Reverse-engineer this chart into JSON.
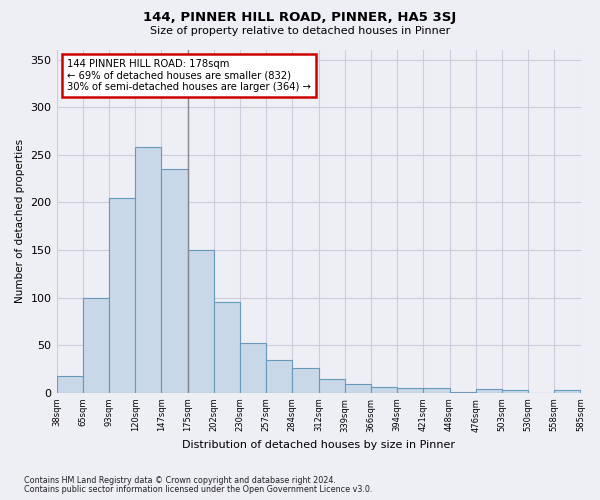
{
  "title": "144, PINNER HILL ROAD, PINNER, HA5 3SJ",
  "subtitle": "Size of property relative to detached houses in Pinner",
  "xlabel": "Distribution of detached houses by size in Pinner",
  "ylabel": "Number of detached properties",
  "bar_left_edges": [
    "38sqm",
    "65sqm",
    "93sqm",
    "120sqm",
    "147sqm",
    "175sqm",
    "202sqm",
    "230sqm",
    "257sqm",
    "284sqm",
    "312sqm",
    "339sqm",
    "366sqm",
    "394sqm",
    "421sqm",
    "448sqm",
    "476sqm",
    "503sqm",
    "530sqm",
    "558sqm",
    "585sqm"
  ],
  "bar_values": [
    18,
    100,
    205,
    258,
    235,
    150,
    95,
    52,
    34,
    26,
    15,
    9,
    6,
    5,
    5,
    1,
    4,
    3,
    0,
    3
  ],
  "bar_color": "#c8d8e8",
  "bar_edge_color": "#6699bb",
  "grid_color": "#ccccdd",
  "annotation_text": "144 PINNER HILL ROAD: 178sqm\n← 69% of detached houses are smaller (832)\n30% of semi-detached houses are larger (364) →",
  "annotation_box_facecolor": "#ffffff",
  "annotation_box_edgecolor": "#cc0000",
  "property_line_bin": 5,
  "property_line_color": "#888888",
  "ylim": [
    0,
    360
  ],
  "yticks": [
    0,
    50,
    100,
    150,
    200,
    250,
    300,
    350
  ],
  "footnote1": "Contains HM Land Registry data © Crown copyright and database right 2024.",
  "footnote2": "Contains public sector information licensed under the Open Government Licence v3.0.",
  "bg_color": "#eeeef5",
  "plot_bg_color": "#eeeef5"
}
